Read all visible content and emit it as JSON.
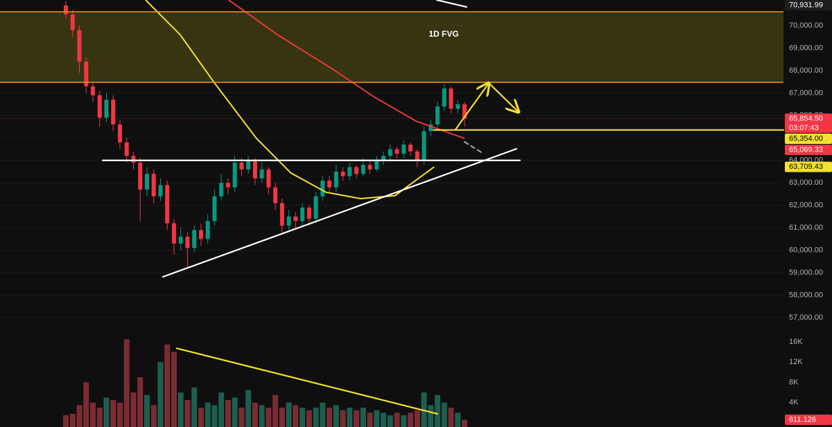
{
  "chart_data": {
    "type": "candlestick",
    "xlim": [
      -9.75,
      106.2
    ],
    "ylim": [
      56352,
      71140
    ],
    "yticks": [
      {
        "value": 57000,
        "label": "57,000.00"
      },
      {
        "value": 58000,
        "label": "58,000.00"
      },
      {
        "value": 59000,
        "label": "59,000.00"
      },
      {
        "value": 60000,
        "label": "60,000.00"
      },
      {
        "value": 61000,
        "label": "61,000.00"
      },
      {
        "value": 62000,
        "label": "62,000.00"
      },
      {
        "value": 63000,
        "label": "63,000.00"
      },
      {
        "value": 64000,
        "label": "64,000.00"
      },
      {
        "value": 65000,
        "label": "65,000.00"
      },
      {
        "value": 66000,
        "label": "66,000.00"
      },
      {
        "value": 67000,
        "label": "67,000.00"
      },
      {
        "value": 68000,
        "label": "68,000.00"
      },
      {
        "value": 69000,
        "label": "69,000.00"
      },
      {
        "value": 70000,
        "label": "70,000.00"
      }
    ],
    "grid": true,
    "up_color": "#089981",
    "down_color": "#f23645",
    "volume_up_color": "#1d5e4f",
    "volume_down_color": "#7b2c33",
    "open": [
      70900,
      70500,
      69800,
      68400,
      67300,
      66900,
      65900,
      66700,
      65600,
      64800,
      64200,
      63900,
      62700,
      63400,
      62400,
      62900,
      61200,
      60300,
      60600,
      60100,
      60900,
      60500,
      61300,
      62400,
      63000,
      62800,
      63900,
      63600,
      64000,
      63200,
      63600,
      62800,
      62100,
      61100,
      61500,
      61300,
      61900,
      61400,
      62400,
      63100,
      62800,
      63500,
      63300,
      63700,
      63400,
      63800,
      63600,
      64000,
      64200,
      64500,
      64300,
      64700,
      64400,
      64000,
      65300,
      65600,
      66400,
      67200,
      66300,
      66500
    ],
    "high": [
      71100,
      70700,
      70000,
      68600,
      67500,
      67100,
      67000,
      66900,
      65800,
      65000,
      64400,
      64100,
      63700,
      63600,
      63200,
      63100,
      61400,
      61000,
      60800,
      61100,
      61200,
      61600,
      62700,
      63400,
      63200,
      64200,
      64100,
      64200,
      64100,
      63900,
      63700,
      63000,
      62300,
      61800,
      61700,
      62100,
      62000,
      62600,
      63300,
      63300,
      63800,
      63700,
      63900,
      63800,
      64100,
      64000,
      64200,
      64400,
      64700,
      64600,
      64900,
      64800,
      64500,
      65500,
      65800,
      66600,
      67400,
      67300,
      66700,
      66600
    ],
    "low": [
      70300,
      69500,
      67900,
      67000,
      66600,
      65500,
      65700,
      65300,
      64500,
      63900,
      63600,
      61300,
      62400,
      62100,
      62200,
      60900,
      59800,
      60000,
      59200,
      59900,
      60200,
      60300,
      61100,
      62200,
      62500,
      62600,
      63300,
      63400,
      62900,
      63000,
      62500,
      61800,
      60800,
      60900,
      61000,
      61100,
      61100,
      61200,
      62200,
      62600,
      62600,
      63100,
      63100,
      63200,
      63300,
      63400,
      63500,
      63800,
      64000,
      64100,
      64100,
      64200,
      63700,
      63800,
      65100,
      65400,
      66200,
      66100,
      66100,
      65500
    ],
    "close": [
      70500,
      69800,
      68400,
      67300,
      66900,
      65900,
      66700,
      65600,
      64800,
      64200,
      63900,
      62700,
      63400,
      62400,
      62900,
      61200,
      60300,
      60600,
      60100,
      60900,
      60500,
      61300,
      62400,
      63000,
      62800,
      63900,
      63600,
      64000,
      63200,
      63600,
      62800,
      62100,
      61100,
      61500,
      61300,
      61900,
      61400,
      62400,
      63100,
      62800,
      63500,
      63300,
      63700,
      63400,
      63800,
      63600,
      64000,
      64200,
      64500,
      64300,
      64700,
      64400,
      64000,
      65300,
      65600,
      66400,
      67200,
      66300,
      66500,
      65854.5
    ],
    "volume": [
      1500,
      1800,
      3500,
      8000,
      4000,
      3000,
      5000,
      4500,
      4000,
      16500,
      6000,
      9000,
      5500,
      3500,
      12000,
      15500,
      14000,
      6000,
      4500,
      7000,
      3000,
      4000,
      3500,
      6000,
      4500,
      5000,
      3000,
      6500,
      4000,
      3500,
      3000,
      5500,
      3000,
      4000,
      3500,
      3000,
      2500,
      3000,
      4000,
      3000,
      3500,
      2500,
      3000,
      2500,
      3000,
      2000,
      2500,
      2000,
      1500,
      2000,
      1500,
      2000,
      2500,
      6000,
      3500,
      5500,
      4000,
      3000,
      2000,
      611.126
    ],
    "volume_ylim": [
      0,
      17500
    ],
    "volume_ticks": [
      {
        "value": 4000,
        "label": "4K"
      },
      {
        "value": 8000,
        "label": "8K"
      },
      {
        "value": 12000,
        "label": "12K"
      },
      {
        "value": 16000,
        "label": "16K"
      }
    ],
    "fvg": {
      "label": "1D FVG",
      "top": 70616,
      "bottom": 67474,
      "color": "#f7941d"
    },
    "moving_averages": [
      {
        "color": "#e53935",
        "x": [
          24.1,
          31.3,
          39.5,
          45.6,
          51.8,
          59
        ],
        "values": [
          71140,
          69600,
          68060,
          66830,
          65750,
          64980
        ]
      },
      {
        "color": "#f5e12a",
        "x": [
          11.8,
          16.9,
          22,
          28.2,
          33.3,
          38.5,
          43.6,
          48.7,
          54.5
        ],
        "values": [
          71140,
          69600,
          67445,
          64980,
          63440,
          62580,
          62300,
          62430,
          63709.43
        ]
      }
    ],
    "drawings": [
      {
        "panel": "price",
        "color": "#ffffff",
        "x": [
          14.36,
          66.7
        ],
        "y": [
          58817,
          64516
        ],
        "dash": false,
        "arrow": false
      },
      {
        "panel": "price",
        "color": "#ffffff",
        "x": [
          5.44,
          67.2
        ],
        "y": [
          64000,
          64000
        ],
        "dash": false,
        "arrow": false
      },
      {
        "panel": "price",
        "color": "#ffffff",
        "x": [
          54.9,
          59.3
        ],
        "y": [
          71140,
          70831
        ],
        "dash": false,
        "arrow": false
      },
      {
        "panel": "price",
        "color": "#9aa0a6",
        "x": [
          59,
          61.8
        ],
        "y": [
          64824,
          64300
        ],
        "dash": true,
        "arrow": false
      },
      {
        "panel": "price",
        "color": "#f5e12a",
        "x": [
          54.4,
          106.2
        ],
        "y": [
          65354,
          65354
        ],
        "dash": false,
        "arrow": false
      },
      {
        "panel": "price",
        "color": "#f5e12a",
        "x": [
          57.6,
          62.6
        ],
        "y": [
          65348,
          67443
        ],
        "dash": false,
        "arrow": true
      },
      {
        "panel": "price",
        "color": "#f5e12a",
        "x": [
          62.6,
          67.0
        ],
        "y": [
          67443,
          66149
        ],
        "dash": false,
        "arrow": true
      },
      {
        "panel": "volume",
        "color": "#f5e12a",
        "x": [
          16.4,
          55
        ],
        "y": [
          14728,
          1773
        ],
        "dash": false,
        "arrow": false
      }
    ],
    "price_tags": [
      {
        "value": 70931.99,
        "label": "70,931.99",
        "color": "#1e1e1e",
        "text_color": "#ffffff"
      },
      {
        "value": 65854.5,
        "label": "65,854.50",
        "sub": "03:07:43",
        "color": "#f23645",
        "text_color": "#ffffff"
      },
      {
        "value": 65354,
        "label": "65,354.00",
        "color": "#f5e12a",
        "text_color": "#000000"
      },
      {
        "value": 65069.33,
        "label": "65,069.33",
        "color": "#f23645",
        "text_color": "#ffffff"
      },
      {
        "value": 63709.43,
        "label": "63,709.43",
        "color": "#f5e12a",
        "text_color": "#000000"
      }
    ]
  }
}
